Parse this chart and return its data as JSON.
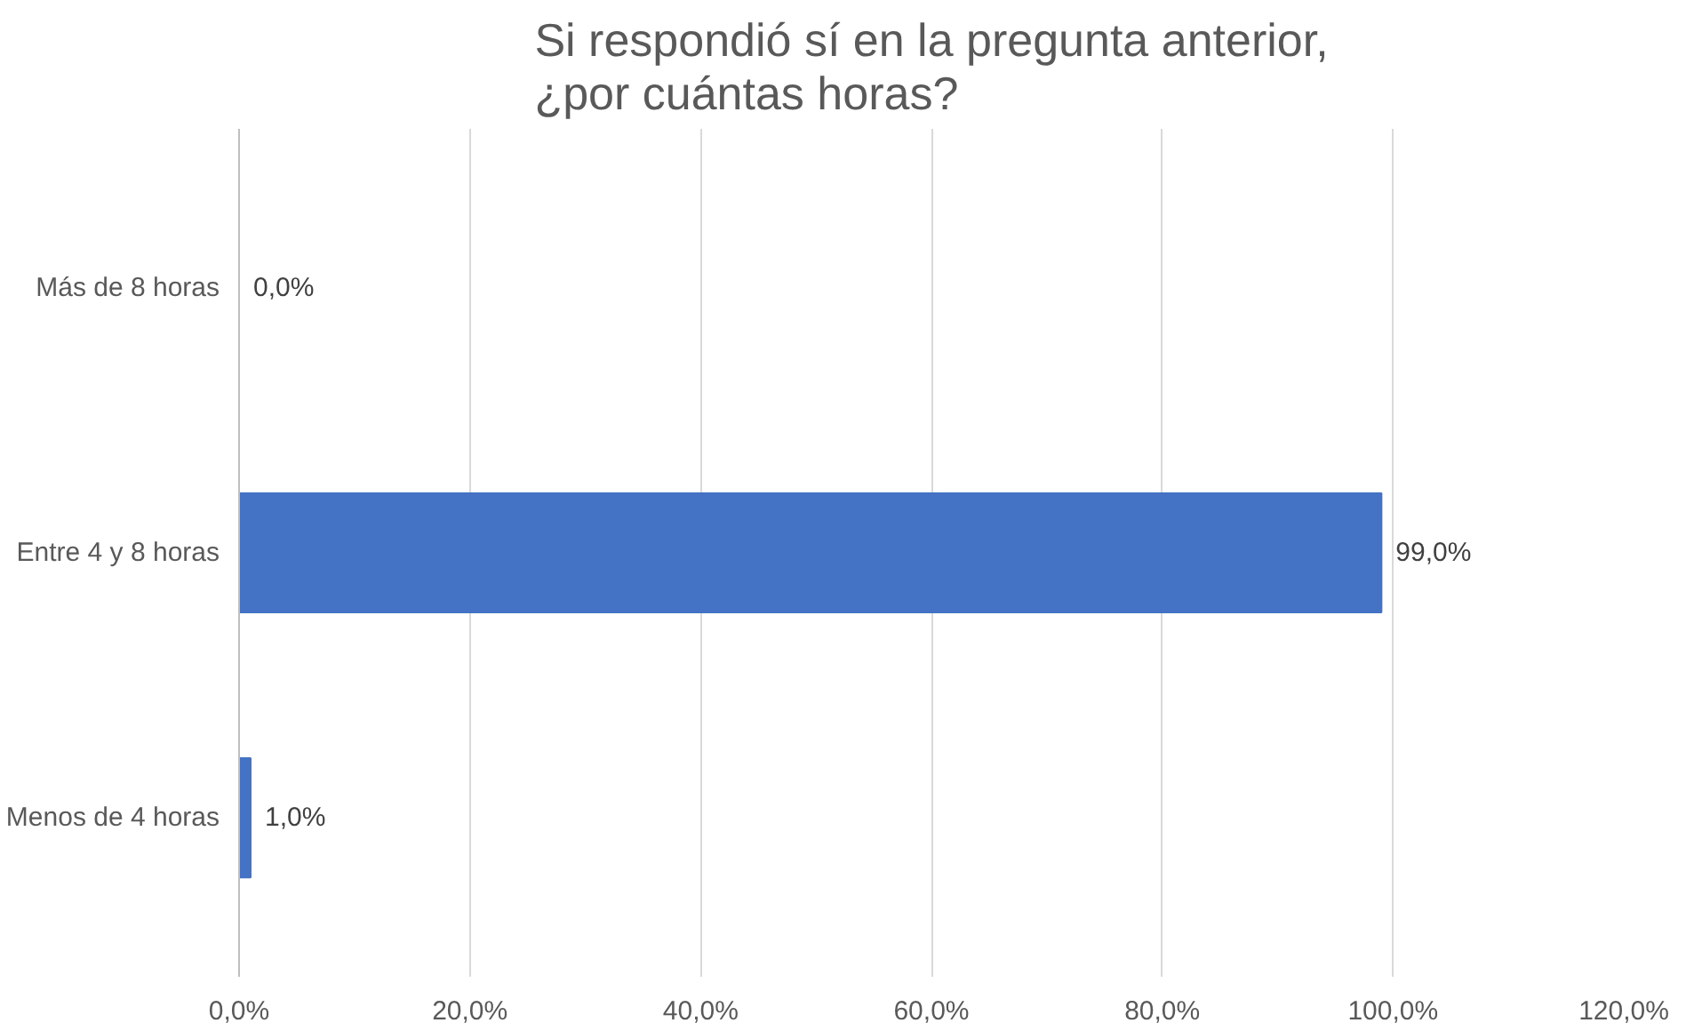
{
  "chart_data": {
    "type": "bar",
    "orientation": "horizontal",
    "title": "Si respondió sí en la pregunta anterior, ¿por cuántas horas?",
    "categories": [
      "Más de 8 horas",
      "Entre 4 y 8 horas",
      "Menos de 4 horas"
    ],
    "values": [
      0,
      99,
      1
    ],
    "value_labels": [
      "0,0%",
      "99,0%",
      "1,0%"
    ],
    "color": "#4472c4",
    "xlim": [
      0,
      120
    ],
    "xticks": [
      {
        "value": 0,
        "label": "0,0%"
      },
      {
        "value": 20,
        "label": "20,0%"
      },
      {
        "value": 40,
        "label": "40,0%"
      },
      {
        "value": 60,
        "label": "60,0%"
      },
      {
        "value": 80,
        "label": "80,0%"
      },
      {
        "value": 100,
        "label": "100,0%"
      },
      {
        "value": 120,
        "label": "120,0%"
      }
    ],
    "grid": "x"
  }
}
